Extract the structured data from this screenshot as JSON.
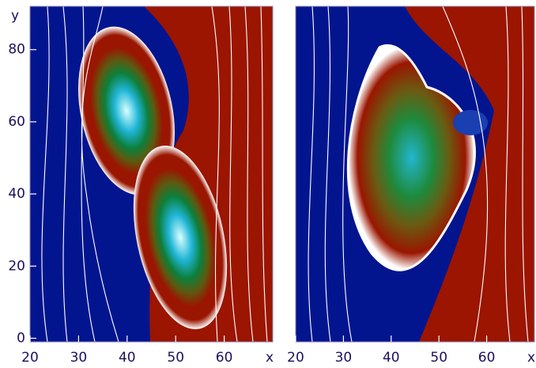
{
  "chart_data": [
    {
      "type": "image",
      "xlabel": "x",
      "ylabel": "y",
      "xlim": [
        20,
        70
      ],
      "ylim": [
        -1,
        92
      ],
      "xticks": [
        20,
        30,
        40,
        50,
        60
      ],
      "yticks": [
        0,
        20,
        40,
        60,
        80
      ]
    },
    {
      "type": "image",
      "xlabel": "x",
      "xlim": [
        20,
        70
      ],
      "ylim": [
        -1,
        92
      ],
      "xticks": [
        20,
        30,
        40,
        50,
        60
      ]
    }
  ]
}
